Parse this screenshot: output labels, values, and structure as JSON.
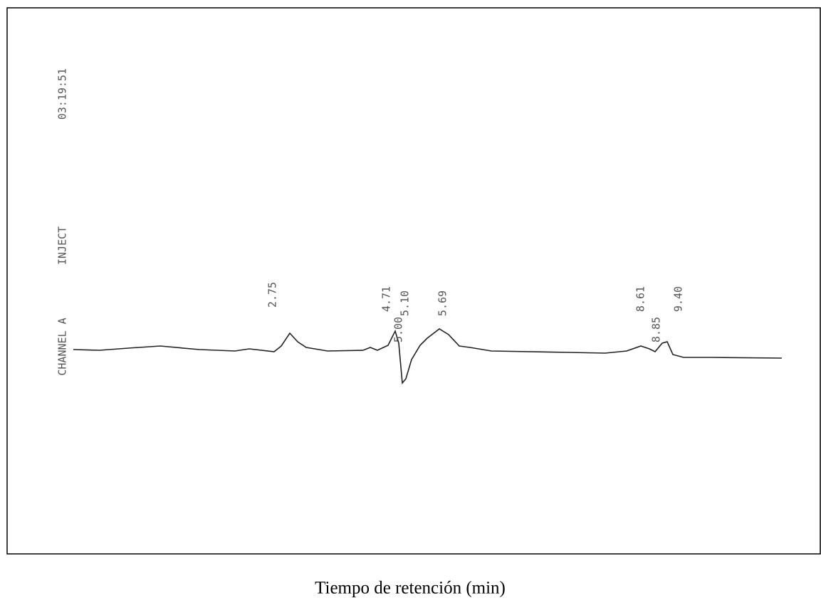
{
  "chart_data": {
    "type": "line",
    "x_label": "Tiempo de retención (min)",
    "channel_label": "CHANNEL A",
    "inject_label": "INJECT",
    "time_stamp": "03:19:51",
    "peak_labels": [
      "2.75",
      "4.71",
      "5.00",
      "5.10",
      "5.69",
      "8.61",
      "8.85",
      "9.40"
    ]
  }
}
